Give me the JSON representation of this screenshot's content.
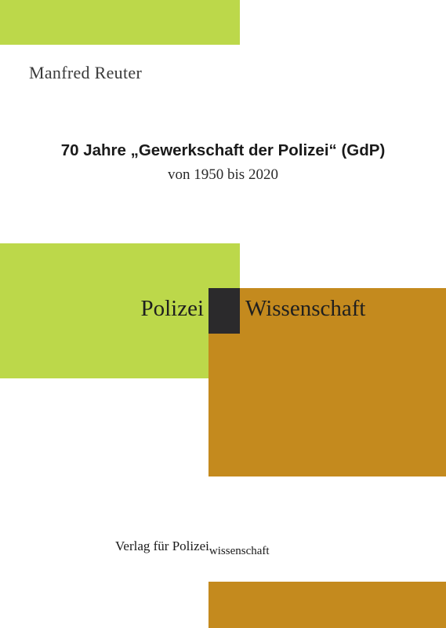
{
  "cover": {
    "author": "Manfred Reuter",
    "title": "70 Jahre „Gewerkschaft der Polizei“ (GdP)",
    "subtitle": "von 1950 bis 2020",
    "series_left": "Polizei",
    "series_right": "Wissenschaft",
    "publisher_main": "Verlag für Polizei",
    "publisher_sub": "wissenschaft"
  },
  "colors": {
    "green": "#bcd84a",
    "ochre": "#c48a1e",
    "dark": "#2b2a2c"
  }
}
